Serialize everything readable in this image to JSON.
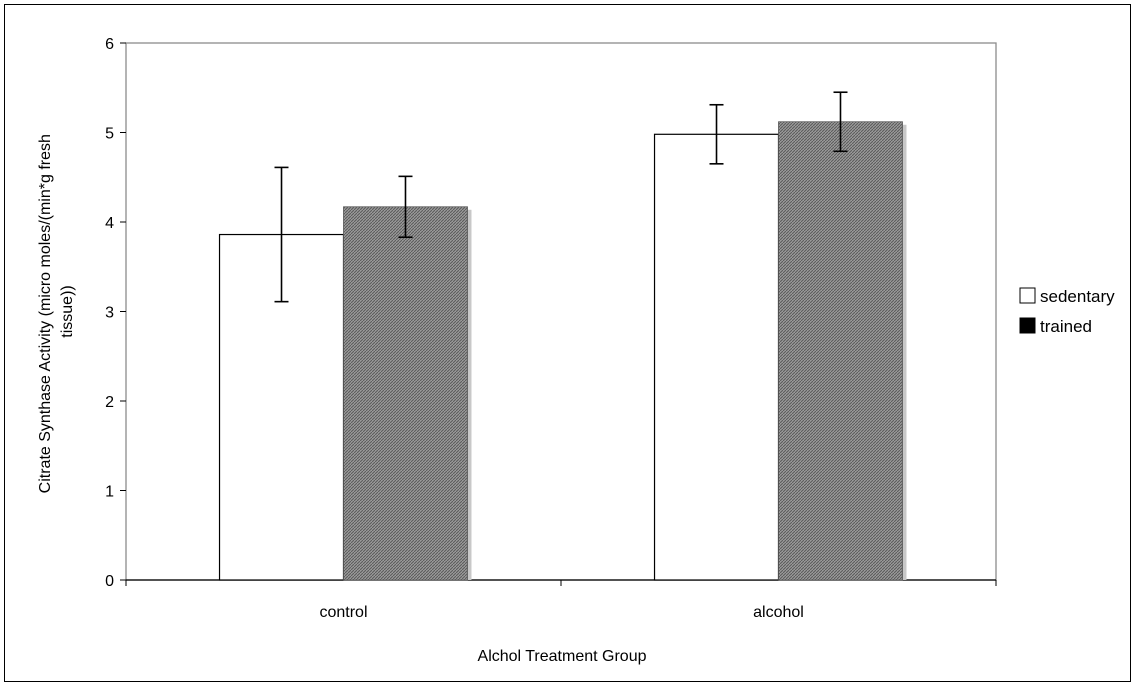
{
  "chart_data": {
    "type": "bar",
    "categories": [
      "control",
      "alcohol"
    ],
    "series": [
      {
        "name": "sedentary",
        "values": [
          3.86,
          4.98
        ],
        "errors": [
          0.75,
          0.33
        ],
        "fill": "#ffffff",
        "legend_color": "#ffffff"
      },
      {
        "name": "trained",
        "values": [
          4.17,
          5.12
        ],
        "errors": [
          0.34,
          0.33
        ],
        "fill": "hatch",
        "legend_color": "#000000"
      }
    ],
    "xlabel": "Alchol Treatment Group",
    "ylabel": "Citrate Synthase Activity (micro moles/(min*g fresh tissue))",
    "ylabel_lines": [
      "Citrate Synthase Activity (micro moles/(min*g fresh",
      "tissue))"
    ],
    "ylim": [
      0,
      6
    ],
    "yticks": [
      "0",
      "1",
      "2",
      "3",
      "4",
      "5",
      "6"
    ],
    "grid": false,
    "legend_position": "right"
  }
}
